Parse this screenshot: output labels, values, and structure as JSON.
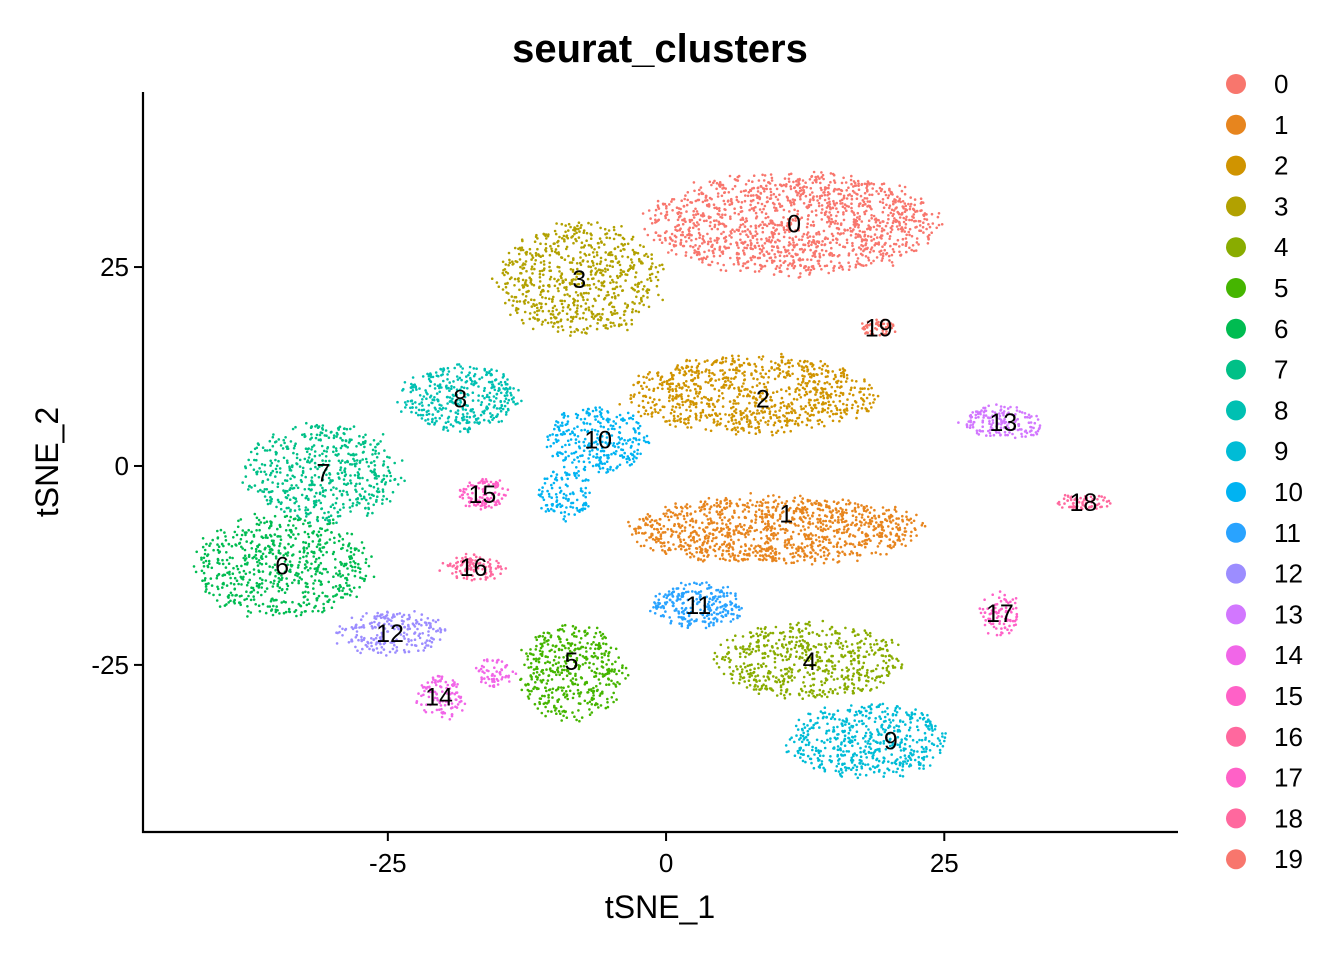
{
  "chart_data": {
    "type": "scatter",
    "title": "seurat_clusters",
    "xlabel": "tSNE_1",
    "ylabel": "tSNE_2",
    "xlim": [
      -47,
      46
    ],
    "ylim": [
      -46,
      47
    ],
    "xticks": [
      -25,
      0,
      25
    ],
    "yticks": [
      -25,
      0,
      25
    ],
    "xtick_labels": [
      "-25",
      "0",
      "25"
    ],
    "ytick_labels": [
      "-25",
      "0",
      "25"
    ],
    "grid": false,
    "legend_position": "right",
    "clusters": [
      {
        "name": "0",
        "color": "#F8766D",
        "label_x": 11.5,
        "label_y": 30.5
      },
      {
        "name": "1",
        "color": "#E7851E",
        "label_x": 10.8,
        "label_y": -6
      },
      {
        "name": "2",
        "color": "#D09400",
        "label_x": 8.7,
        "label_y": 8.5
      },
      {
        "name": "3",
        "color": "#B2A100",
        "label_x": -7.8,
        "label_y": 23.5
      },
      {
        "name": "4",
        "color": "#89AC00",
        "label_x": 12.9,
        "label_y": -24.5
      },
      {
        "name": "5",
        "color": "#45B500",
        "label_x": -8.5,
        "label_y": -24.5
      },
      {
        "name": "6",
        "color": "#00BC51",
        "label_x": -34.5,
        "label_y": -12.5
      },
      {
        "name": "7",
        "color": "#00C087",
        "label_x": -30.8,
        "label_y": -0.8
      },
      {
        "name": "8",
        "color": "#00C0B2",
        "label_x": -18.5,
        "label_y": 8.5
      },
      {
        "name": "9",
        "color": "#00BCD6",
        "label_x": 20.2,
        "label_y": -34.5
      },
      {
        "name": "10",
        "color": "#00B3F2",
        "label_x": -6.1,
        "label_y": 3.3
      },
      {
        "name": "11",
        "color": "#29A3FF",
        "label_x": 2.9,
        "label_y": -17.5
      },
      {
        "name": "12",
        "color": "#9C8DFF",
        "label_x": -24.8,
        "label_y": -21
      },
      {
        "name": "13",
        "color": "#D277FF",
        "label_x": 30.3,
        "label_y": 5.5
      },
      {
        "name": "14",
        "color": "#F166E8",
        "label_x": -20.4,
        "label_y": -29
      },
      {
        "name": "15",
        "color": "#FF61C7",
        "label_x": -16.5,
        "label_y": -3.5
      },
      {
        "name": "16",
        "color": "#FF689E",
        "label_x": -17.3,
        "label_y": -12.7
      },
      {
        "name": "17",
        "color": "#FF61C7",
        "label_x": 30.0,
        "label_y": -18.5
      },
      {
        "name": "18",
        "color": "#FF689E",
        "label_x": 37.5,
        "label_y": -4.5
      },
      {
        "name": "19",
        "color": "#F8766D",
        "label_x": 19.1,
        "label_y": 17.4
      }
    ]
  }
}
